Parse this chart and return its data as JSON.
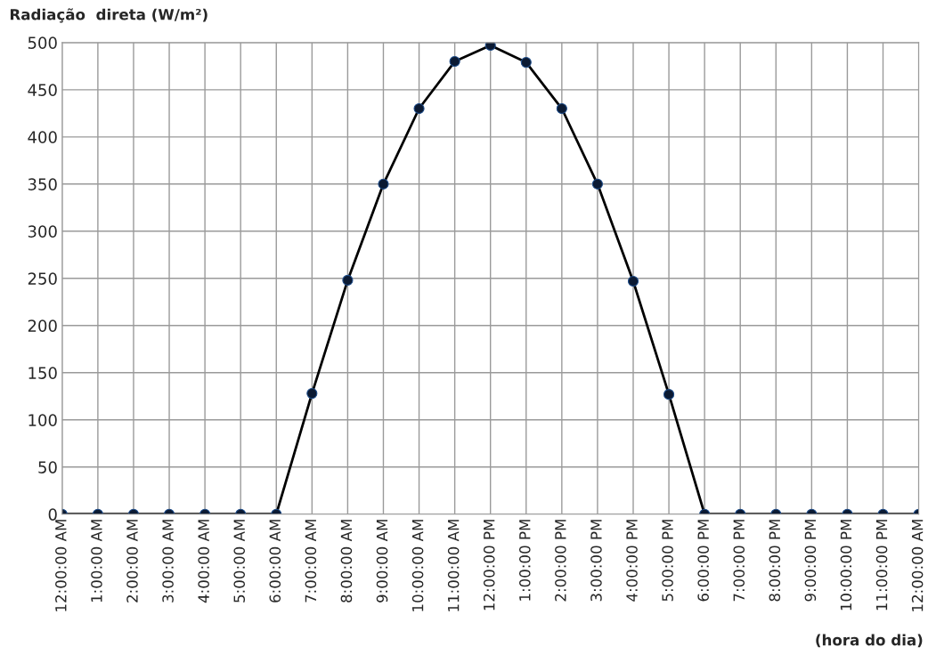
{
  "chart_data": {
    "type": "line",
    "ylabel": "Radiação  direta (W/m²)",
    "xlabel": "(hora do dia)",
    "categories": [
      "12:00:00 AM",
      "1:00:00 AM",
      "2:00:00 AM",
      "3:00:00 AM",
      "4:00:00 AM",
      "5:00:00 AM",
      "6:00:00 AM",
      "7:00:00 AM",
      "8:00:00 AM",
      "9:00:00 AM",
      "10:00:00 AM",
      "11:00:00 AM",
      "12:00:00 PM",
      "1:00:00 PM",
      "2:00:00 PM",
      "3:00:00 PM",
      "4:00:00 PM",
      "5:00:00 PM",
      "6:00:00 PM",
      "7:00:00 PM",
      "8:00:00 PM",
      "9:00:00 PM",
      "10:00:00 PM",
      "11:00:00 PM",
      "12:00:00 AM"
    ],
    "series": [
      {
        "color": "#000000",
        "values": [
          0,
          0,
          0,
          0,
          0,
          0,
          0,
          128,
          248,
          350,
          430,
          480,
          497,
          479,
          430,
          350,
          247,
          127,
          0,
          0,
          0,
          0,
          0,
          0,
          0
        ]
      }
    ],
    "ylim": [
      0,
      500
    ],
    "yticks": [
      0,
      50,
      100,
      150,
      200,
      250,
      300,
      350,
      400,
      450,
      500
    ],
    "grid": true,
    "marker": "circle",
    "line_style": "solid",
    "legend": false
  }
}
